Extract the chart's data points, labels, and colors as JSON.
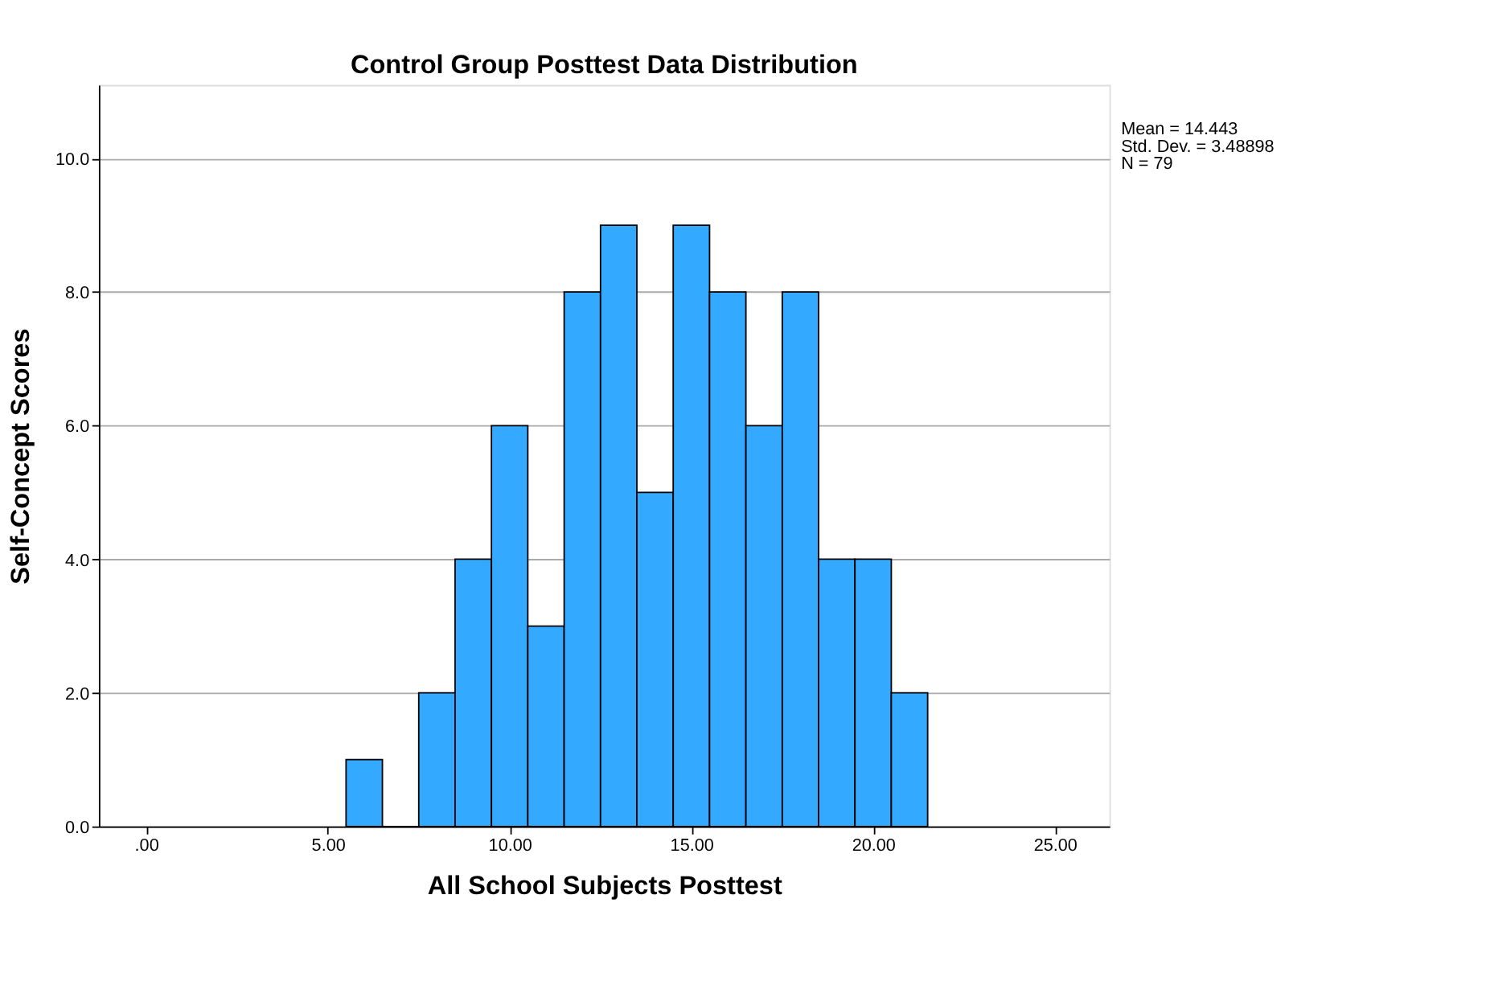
{
  "chart_data": {
    "type": "histogram",
    "title": "Control Group Posttest Data Distribution",
    "xlabel": "All School Subjects Posttest",
    "ylabel": "Self-Concept Scores",
    "bins": [
      5.5,
      6.5,
      7.5,
      8.5,
      9.5,
      10.5,
      11.5,
      12.5,
      13.5,
      14.5,
      15.5,
      16.5,
      17.5,
      18.5,
      19.5,
      20.5,
      21.5
    ],
    "values": [
      1,
      0,
      2,
      4,
      6,
      3,
      8,
      9,
      5,
      9,
      8,
      6,
      8,
      4,
      4,
      2
    ],
    "color": "#33aaff",
    "xlim": [
      -1.3,
      26.5
    ],
    "ylim": [
      0,
      11.1
    ],
    "xticks": [
      {
        "value": 0,
        "label": ".00"
      },
      {
        "value": 5,
        "label": "5.00"
      },
      {
        "value": 10,
        "label": "10.00"
      },
      {
        "value": 15,
        "label": "15.00"
      },
      {
        "value": 20,
        "label": "20.00"
      },
      {
        "value": 25,
        "label": "25.00"
      }
    ],
    "yticks": [
      {
        "value": 0,
        "label": "0.0"
      },
      {
        "value": 2,
        "label": "2.0"
      },
      {
        "value": 4,
        "label": "4.0"
      },
      {
        "value": 6,
        "label": "6.0"
      },
      {
        "value": 8,
        "label": "8.0"
      },
      {
        "value": 10,
        "label": "10.0"
      }
    ],
    "grid": "y",
    "annotations": [
      "Mean = 14.443",
      "Std. Dev. = 3.48898",
      "N = 79"
    ]
  }
}
